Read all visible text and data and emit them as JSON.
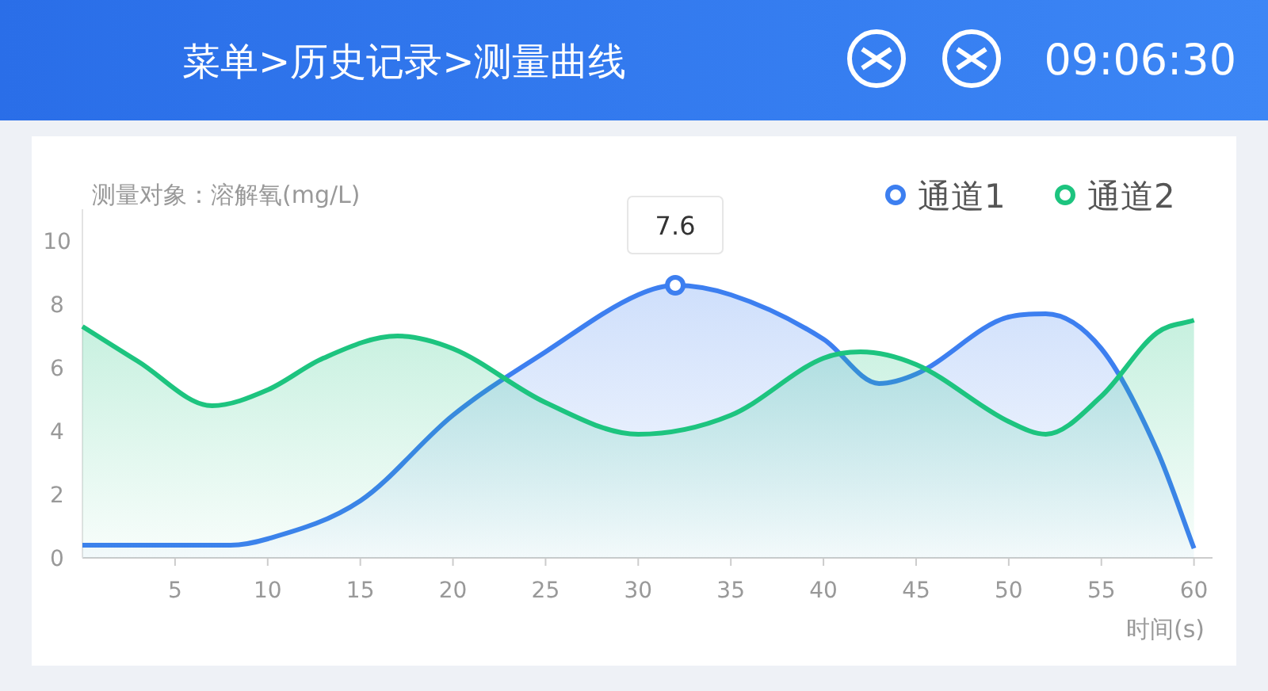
{
  "chart_data": {
    "type": "area",
    "title": "菜单>历史记录>测量曲线",
    "ylabel": "测量对象：溶解氧(mg/L)",
    "xlabel": "时间(s)",
    "annotations": [
      "09:06:30",
      {
        "text": "7.6",
        "x": 32,
        "y": 8.6
      }
    ],
    "xlim": [
      0,
      61
    ],
    "ylim": [
      0,
      11
    ],
    "xticks": [
      5,
      10,
      15,
      20,
      25,
      30,
      35,
      40,
      45,
      50,
      55,
      60
    ],
    "yticks": [
      0,
      2,
      4,
      6,
      8,
      10
    ],
    "legend": "top right",
    "marker": "none",
    "line_style": "solid",
    "grid": false,
    "series": [
      {
        "name": "通道1",
        "color": "#3d7ff0",
        "x": [
          0,
          5,
          8,
          10,
          15,
          20,
          25,
          30,
          32,
          35,
          40,
          43,
          45,
          50,
          52,
          55,
          58,
          60
        ],
        "values": [
          0.4,
          0.4,
          0.4,
          0.6,
          1.8,
          4.5,
          6.5,
          8.3,
          8.6,
          8.3,
          6.9,
          5.5,
          5.8,
          7.6,
          7.7,
          6.6,
          3.4,
          0.3
        ]
      },
      {
        "name": "通道2",
        "color": "#1dc47f",
        "x": [
          0,
          3,
          7,
          10,
          13,
          17,
          20,
          25,
          30,
          35,
          40,
          42,
          45,
          50,
          52,
          55,
          58,
          60
        ],
        "values": [
          7.3,
          6.2,
          4.8,
          5.3,
          6.3,
          7.0,
          6.6,
          4.9,
          3.9,
          4.5,
          6.3,
          6.5,
          6.1,
          4.3,
          3.9,
          5.1,
          7.1,
          7.5
        ]
      }
    ]
  }
}
